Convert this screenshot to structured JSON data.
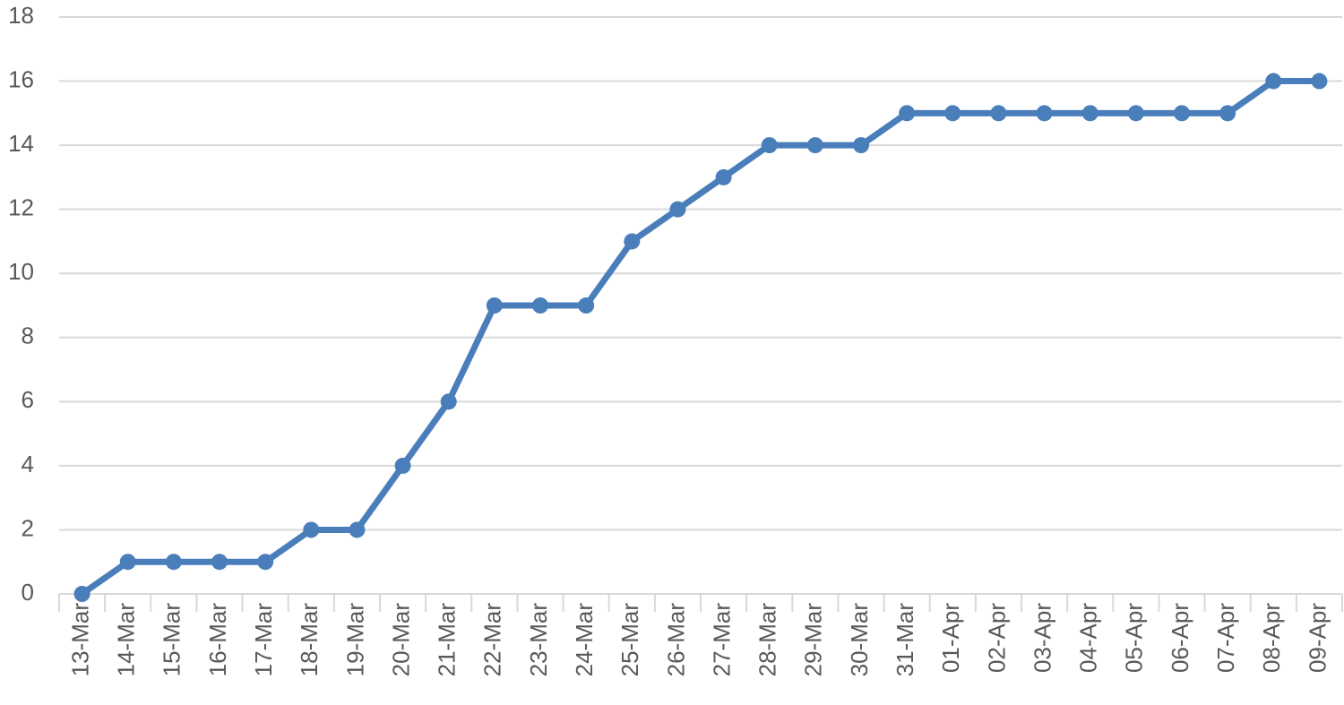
{
  "chart_data": {
    "type": "line",
    "categories": [
      "13-Mar",
      "14-Mar",
      "15-Mar",
      "16-Mar",
      "17-Mar",
      "18-Mar",
      "19-Mar",
      "20-Mar",
      "21-Mar",
      "22-Mar",
      "23-Mar",
      "24-Mar",
      "25-Mar",
      "26-Mar",
      "27-Mar",
      "28-Mar",
      "29-Mar",
      "30-Mar",
      "31-Mar",
      "01-Apr",
      "02-Apr",
      "03-Apr",
      "04-Apr",
      "05-Apr",
      "06-Apr",
      "07-Apr",
      "08-Apr",
      "09-Apr"
    ],
    "values": [
      0,
      1,
      1,
      1,
      1,
      2,
      2,
      4,
      6,
      9,
      9,
      9,
      11,
      12,
      13,
      14,
      14,
      14,
      15,
      15,
      15,
      15,
      15,
      15,
      15,
      15,
      16,
      16
    ],
    "color": "#4a7ebb",
    "ylim": [
      0,
      18
    ],
    "yticks": [
      0,
      2,
      4,
      6,
      8,
      10,
      12,
      14,
      16,
      18
    ],
    "grid": true
  }
}
